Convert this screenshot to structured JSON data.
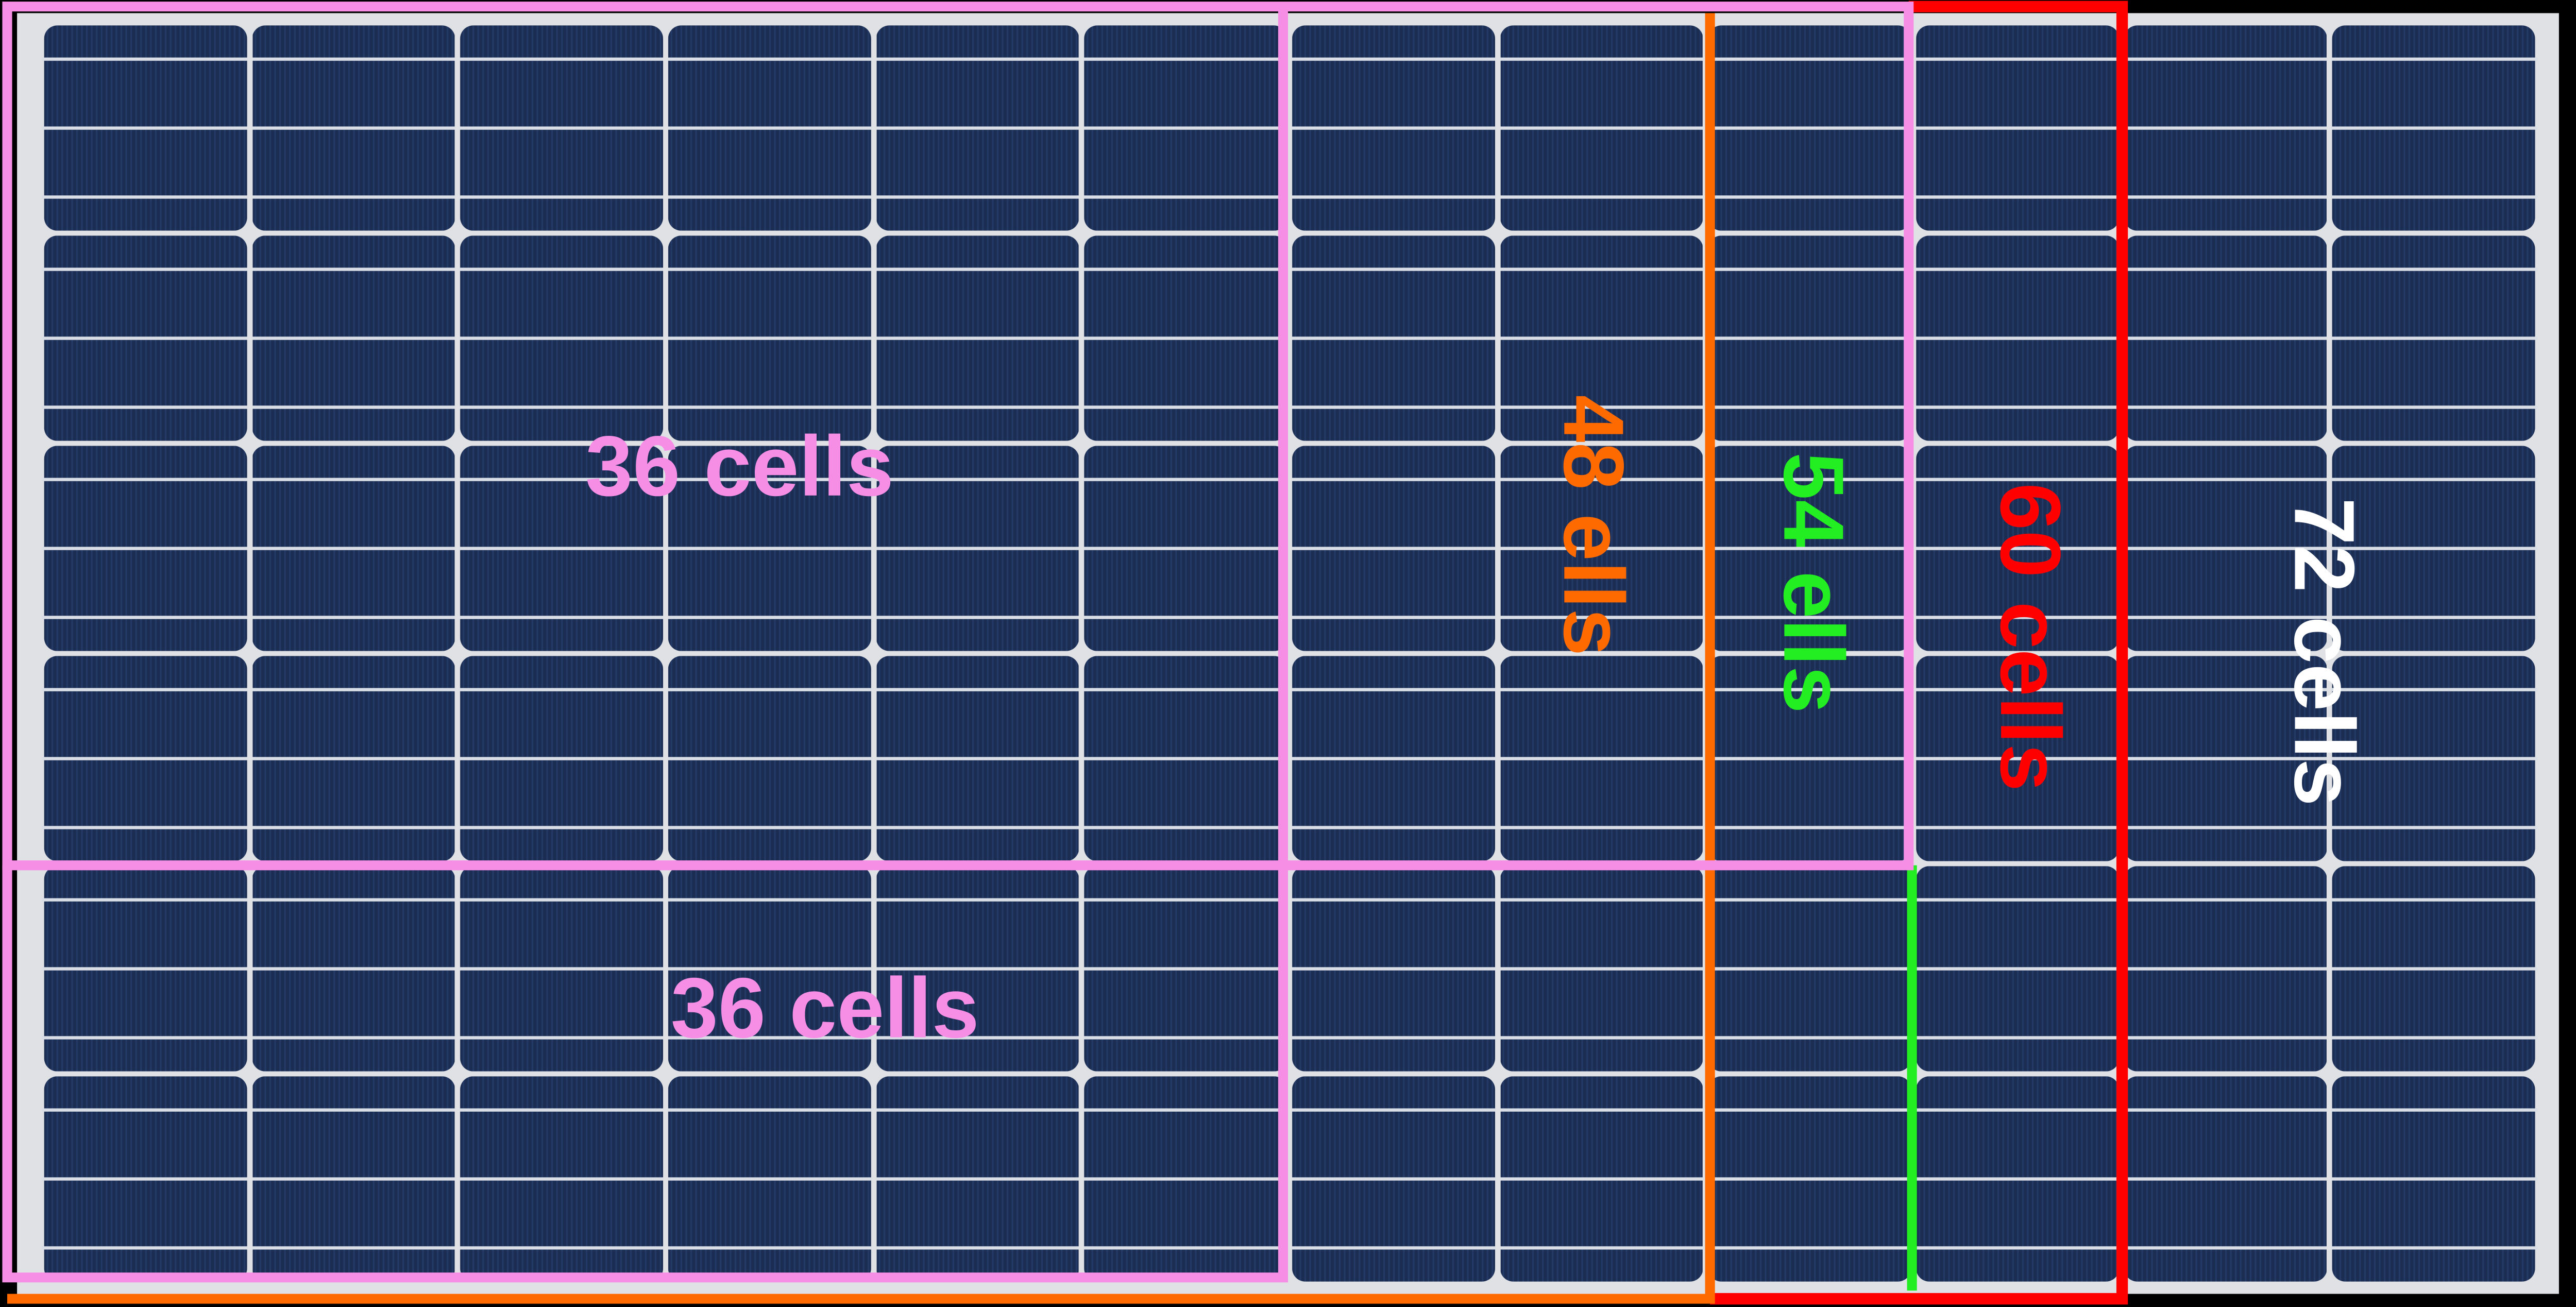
{
  "labels": {
    "cells_36_top": "36 cells",
    "cells_36_bottom": "36 cells",
    "cells_48": "48 ells",
    "cells_54": "54 ells",
    "cells_60": "60 cells",
    "cells_72": "72 cells"
  }
}
